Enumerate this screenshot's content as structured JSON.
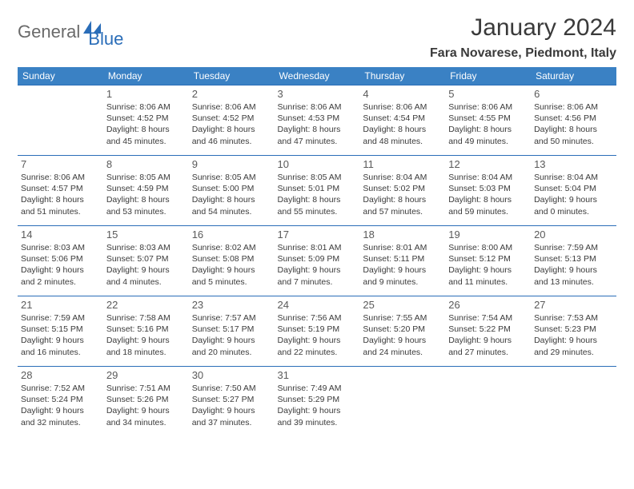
{
  "logo": {
    "part1": "General",
    "part2": "Blue"
  },
  "title": "January 2024",
  "location": "Fara Novarese, Piedmont, Italy",
  "colors": {
    "header_bg": "#3a81c4",
    "header_text": "#ffffff",
    "border": "#2a6db8",
    "body_text": "#3a3a3a",
    "daynum": "#5a5a5a",
    "logo_gray": "#6a6a6a",
    "logo_blue": "#2a6db8",
    "background": "#ffffff"
  },
  "weekdays": [
    "Sunday",
    "Monday",
    "Tuesday",
    "Wednesday",
    "Thursday",
    "Friday",
    "Saturday"
  ],
  "weeks": [
    [
      null,
      {
        "n": "1",
        "sr": "8:06 AM",
        "ss": "4:52 PM",
        "dl": "8 hours and 45 minutes."
      },
      {
        "n": "2",
        "sr": "8:06 AM",
        "ss": "4:52 PM",
        "dl": "8 hours and 46 minutes."
      },
      {
        "n": "3",
        "sr": "8:06 AM",
        "ss": "4:53 PM",
        "dl": "8 hours and 47 minutes."
      },
      {
        "n": "4",
        "sr": "8:06 AM",
        "ss": "4:54 PM",
        "dl": "8 hours and 48 minutes."
      },
      {
        "n": "5",
        "sr": "8:06 AM",
        "ss": "4:55 PM",
        "dl": "8 hours and 49 minutes."
      },
      {
        "n": "6",
        "sr": "8:06 AM",
        "ss": "4:56 PM",
        "dl": "8 hours and 50 minutes."
      }
    ],
    [
      {
        "n": "7",
        "sr": "8:06 AM",
        "ss": "4:57 PM",
        "dl": "8 hours and 51 minutes."
      },
      {
        "n": "8",
        "sr": "8:05 AM",
        "ss": "4:59 PM",
        "dl": "8 hours and 53 minutes."
      },
      {
        "n": "9",
        "sr": "8:05 AM",
        "ss": "5:00 PM",
        "dl": "8 hours and 54 minutes."
      },
      {
        "n": "10",
        "sr": "8:05 AM",
        "ss": "5:01 PM",
        "dl": "8 hours and 55 minutes."
      },
      {
        "n": "11",
        "sr": "8:04 AM",
        "ss": "5:02 PM",
        "dl": "8 hours and 57 minutes."
      },
      {
        "n": "12",
        "sr": "8:04 AM",
        "ss": "5:03 PM",
        "dl": "8 hours and 59 minutes."
      },
      {
        "n": "13",
        "sr": "8:04 AM",
        "ss": "5:04 PM",
        "dl": "9 hours and 0 minutes."
      }
    ],
    [
      {
        "n": "14",
        "sr": "8:03 AM",
        "ss": "5:06 PM",
        "dl": "9 hours and 2 minutes."
      },
      {
        "n": "15",
        "sr": "8:03 AM",
        "ss": "5:07 PM",
        "dl": "9 hours and 4 minutes."
      },
      {
        "n": "16",
        "sr": "8:02 AM",
        "ss": "5:08 PM",
        "dl": "9 hours and 5 minutes."
      },
      {
        "n": "17",
        "sr": "8:01 AM",
        "ss": "5:09 PM",
        "dl": "9 hours and 7 minutes."
      },
      {
        "n": "18",
        "sr": "8:01 AM",
        "ss": "5:11 PM",
        "dl": "9 hours and 9 minutes."
      },
      {
        "n": "19",
        "sr": "8:00 AM",
        "ss": "5:12 PM",
        "dl": "9 hours and 11 minutes."
      },
      {
        "n": "20",
        "sr": "7:59 AM",
        "ss": "5:13 PM",
        "dl": "9 hours and 13 minutes."
      }
    ],
    [
      {
        "n": "21",
        "sr": "7:59 AM",
        "ss": "5:15 PM",
        "dl": "9 hours and 16 minutes."
      },
      {
        "n": "22",
        "sr": "7:58 AM",
        "ss": "5:16 PM",
        "dl": "9 hours and 18 minutes."
      },
      {
        "n": "23",
        "sr": "7:57 AM",
        "ss": "5:17 PM",
        "dl": "9 hours and 20 minutes."
      },
      {
        "n": "24",
        "sr": "7:56 AM",
        "ss": "5:19 PM",
        "dl": "9 hours and 22 minutes."
      },
      {
        "n": "25",
        "sr": "7:55 AM",
        "ss": "5:20 PM",
        "dl": "9 hours and 24 minutes."
      },
      {
        "n": "26",
        "sr": "7:54 AM",
        "ss": "5:22 PM",
        "dl": "9 hours and 27 minutes."
      },
      {
        "n": "27",
        "sr": "7:53 AM",
        "ss": "5:23 PM",
        "dl": "9 hours and 29 minutes."
      }
    ],
    [
      {
        "n": "28",
        "sr": "7:52 AM",
        "ss": "5:24 PM",
        "dl": "9 hours and 32 minutes."
      },
      {
        "n": "29",
        "sr": "7:51 AM",
        "ss": "5:26 PM",
        "dl": "9 hours and 34 minutes."
      },
      {
        "n": "30",
        "sr": "7:50 AM",
        "ss": "5:27 PM",
        "dl": "9 hours and 37 minutes."
      },
      {
        "n": "31",
        "sr": "7:49 AM",
        "ss": "5:29 PM",
        "dl": "9 hours and 39 minutes."
      },
      null,
      null,
      null
    ]
  ],
  "labels": {
    "sunrise": "Sunrise:",
    "sunset": "Sunset:",
    "daylight": "Daylight:"
  }
}
